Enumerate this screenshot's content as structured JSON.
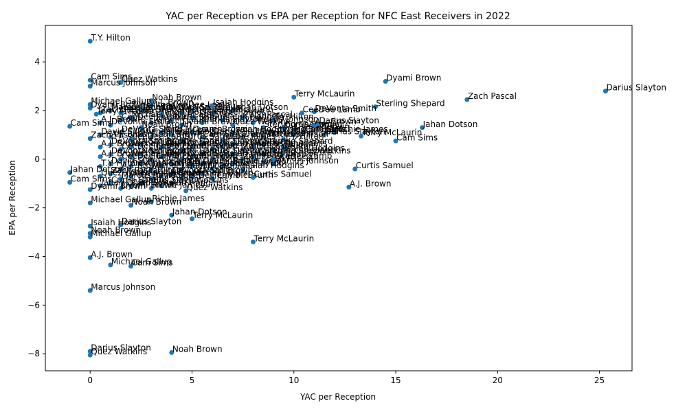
{
  "chart_data": {
    "type": "scatter",
    "title": "YAC per Reception vs EPA per Reception for NFC East Receivers in 2022",
    "xlabel": "YAC per Reception",
    "ylabel": "EPA per Reception",
    "xlim": [
      -2.2,
      26.6
    ],
    "ylim": [
      -8.7,
      5.5
    ],
    "xticks": [
      0,
      5,
      10,
      15,
      20,
      25
    ],
    "yticks": [
      -8,
      -6,
      -4,
      -2,
      0,
      2,
      4
    ],
    "grid": false,
    "marker_color": "#1f77b4",
    "labeled_points": [
      {
        "name": "T.Y. Hilton",
        "x": 0.0,
        "y": 4.85
      },
      {
        "name": "Cam Sims",
        "x": 0.0,
        "y": 3.25
      },
      {
        "name": "Marcus Johnson",
        "x": 0.0,
        "y": 3.0
      },
      {
        "name": "Quez Watkins",
        "x": 1.5,
        "y": 3.15
      },
      {
        "name": "Dyami Brown",
        "x": 14.5,
        "y": 3.2
      },
      {
        "name": "Darius Slayton",
        "x": 25.3,
        "y": 2.8
      },
      {
        "name": "Zach Pascal",
        "x": 18.5,
        "y": 2.45
      },
      {
        "name": "Terry McLaurin",
        "x": 10.0,
        "y": 2.55
      },
      {
        "name": "Noah Brown",
        "x": 3.0,
        "y": 2.4
      },
      {
        "name": "Isaiah Hodgins",
        "x": 6.0,
        "y": 2.2
      },
      {
        "name": "Sterling Shepard",
        "x": 14.0,
        "y": 2.15
      },
      {
        "name": "CeeDee Lamb",
        "x": 10.4,
        "y": 1.9
      },
      {
        "name": "DeVonta Smith",
        "x": 11.0,
        "y": 1.95
      },
      {
        "name": "Jahan Dotson",
        "x": 16.3,
        "y": 1.3
      },
      {
        "name": "Cam Sims",
        "x": 15.0,
        "y": 0.75
      },
      {
        "name": "Terry McLaurin",
        "x": 13.3,
        "y": 0.95
      },
      {
        "name": "A.J. Brown",
        "x": 11.0,
        "y": 1.4
      },
      {
        "name": "Darius Slayton",
        "x": 11.2,
        "y": 1.45
      },
      {
        "name": "Dyami Brown",
        "x": 0.0,
        "y": 2.1
      },
      {
        "name": "Michael Gallup",
        "x": 0.0,
        "y": 2.25
      },
      {
        "name": "Terry McLaurin",
        "x": 0.3,
        "y": 1.85
      },
      {
        "name": "Cam Sims",
        "x": -1.0,
        "y": 1.35
      },
      {
        "name": "Curtis Samuel",
        "x": 13.0,
        "y": -0.4
      },
      {
        "name": "A.J. Brown",
        "x": 12.7,
        "y": -1.15
      },
      {
        "name": "Curtis Samuel",
        "x": 8.0,
        "y": -0.75
      },
      {
        "name": "CeeDee Lamb",
        "x": 9.0,
        "y": 0.0
      },
      {
        "name": "Quez Watkins",
        "x": 4.7,
        "y": -1.3
      },
      {
        "name": "Richie James",
        "x": 3.0,
        "y": -1.75
      },
      {
        "name": "Noah Brown",
        "x": 2.0,
        "y": -1.9
      },
      {
        "name": "Jahan Dotson",
        "x": 4.0,
        "y": -2.3
      },
      {
        "name": "Terry McLaurin",
        "x": 5.0,
        "y": -2.45
      },
      {
        "name": "Darius Slayton",
        "x": 1.5,
        "y": -2.7
      },
      {
        "name": "Isaiah Hodgins",
        "x": 0.0,
        "y": -2.75
      },
      {
        "name": "Noah Brown",
        "x": 0.0,
        "y": -3.05
      },
      {
        "name": "Michael Gallup",
        "x": 0.0,
        "y": -3.2
      },
      {
        "name": "Terry McLaurin",
        "x": 8.0,
        "y": -3.4
      },
      {
        "name": "A.J. Brown",
        "x": 0.0,
        "y": -4.05
      },
      {
        "name": "Michael Gallup",
        "x": 1.0,
        "y": -4.35
      },
      {
        "name": "Cam Sims",
        "x": 2.0,
        "y": -4.4
      },
      {
        "name": "Marcus Johnson",
        "x": 0.0,
        "y": -5.4
      },
      {
        "name": "Darius Slayton",
        "x": 0.0,
        "y": -7.9
      },
      {
        "name": "Quez Watkins",
        "x": 0.0,
        "y": -8.05
      },
      {
        "name": "Noah Brown",
        "x": 4.0,
        "y": -7.95
      },
      {
        "name": "Michael Gallup",
        "x": 0.0,
        "y": -1.8
      },
      {
        "name": "Jahan Dotson",
        "x": -1.0,
        "y": -0.55
      },
      {
        "name": "Cam Sims",
        "x": -1.0,
        "y": -0.95
      },
      {
        "name": "Zach Pascal",
        "x": 0.0,
        "y": 0.85
      },
      {
        "name": "Dyami Brown",
        "x": 0.0,
        "y": -1.25
      }
    ],
    "cluster_names": [
      "A.J. Brown",
      "DeVonta Smith",
      "CeeDee Lamb",
      "Michael Gallup",
      "Noah Brown",
      "Terry McLaurin",
      "Jahan Dotson",
      "Curtis Samuel",
      "Dyami Brown",
      "Cam Sims",
      "Darius Slayton",
      "Richie James",
      "Isaiah Hodgins",
      "Quez Watkins",
      "Zach Pascal",
      "Marcus Johnson",
      "Sterling Shepard",
      "T.Y. Hilton",
      "David Sills"
    ],
    "cluster_points": [
      [
        0.5,
        1.5
      ],
      [
        1.0,
        1.4
      ],
      [
        1.5,
        1.6
      ],
      [
        2.0,
        1.7
      ],
      [
        2.5,
        1.3
      ],
      [
        3.0,
        1.5
      ],
      [
        3.5,
        1.8
      ],
      [
        4.0,
        1.6
      ],
      [
        4.5,
        1.4
      ],
      [
        5.0,
        1.7
      ],
      [
        5.5,
        1.5
      ],
      [
        6.0,
        1.8
      ],
      [
        6.5,
        1.6
      ],
      [
        7.0,
        1.4
      ],
      [
        7.5,
        1.7
      ],
      [
        8.0,
        1.5
      ],
      [
        8.5,
        1.3
      ],
      [
        9.0,
        1.6
      ],
      [
        0.5,
        1.0
      ],
      [
        1.0,
        0.9
      ],
      [
        1.5,
        1.1
      ],
      [
        2.0,
        0.8
      ],
      [
        2.5,
        1.0
      ],
      [
        3.0,
        0.9
      ],
      [
        3.5,
        1.1
      ],
      [
        4.0,
        1.0
      ],
      [
        4.5,
        0.8
      ],
      [
        5.0,
        1.1
      ],
      [
        5.5,
        0.9
      ],
      [
        6.0,
        1.0
      ],
      [
        6.5,
        0.8
      ],
      [
        7.0,
        1.1
      ],
      [
        7.5,
        0.9
      ],
      [
        8.0,
        1.0
      ],
      [
        8.5,
        0.9
      ],
      [
        9.0,
        1.1
      ],
      [
        9.5,
        0.8
      ],
      [
        10.0,
        1.0
      ],
      [
        0.5,
        0.5
      ],
      [
        1.0,
        0.6
      ],
      [
        1.5,
        0.4
      ],
      [
        2.0,
        0.5
      ],
      [
        2.5,
        0.6
      ],
      [
        3.0,
        0.4
      ],
      [
        3.5,
        0.5
      ],
      [
        4.0,
        0.6
      ],
      [
        4.5,
        0.4
      ],
      [
        5.0,
        0.5
      ],
      [
        5.5,
        0.6
      ],
      [
        6.0,
        0.4
      ],
      [
        6.5,
        0.5
      ],
      [
        7.0,
        0.6
      ],
      [
        7.5,
        0.4
      ],
      [
        8.0,
        0.5
      ],
      [
        8.5,
        0.6
      ],
      [
        9.0,
        0.4
      ],
      [
        9.5,
        0.5
      ],
      [
        0.5,
        0.1
      ],
      [
        1.0,
        0.2
      ],
      [
        1.5,
        0.0
      ],
      [
        2.0,
        0.1
      ],
      [
        2.5,
        0.2
      ],
      [
        3.0,
        0.0
      ],
      [
        3.5,
        0.1
      ],
      [
        4.0,
        0.2
      ],
      [
        4.5,
        0.0
      ],
      [
        5.0,
        0.1
      ],
      [
        5.5,
        0.2
      ],
      [
        6.0,
        0.0
      ],
      [
        6.5,
        0.1
      ],
      [
        7.0,
        0.2
      ],
      [
        7.5,
        0.0
      ],
      [
        8.0,
        0.1
      ],
      [
        8.5,
        0.2
      ],
      [
        0.5,
        -0.3
      ],
      [
        1.0,
        -0.2
      ],
      [
        1.5,
        -0.4
      ],
      [
        2.0,
        -0.3
      ],
      [
        2.5,
        -0.2
      ],
      [
        3.0,
        -0.4
      ],
      [
        3.5,
        -0.3
      ],
      [
        4.0,
        -0.2
      ],
      [
        4.5,
        -0.4
      ],
      [
        5.0,
        -0.3
      ],
      [
        5.5,
        -0.2
      ],
      [
        6.0,
        -0.4
      ],
      [
        6.5,
        -0.3
      ],
      [
        7.0,
        -0.2
      ],
      [
        7.5,
        -0.4
      ],
      [
        0.5,
        -0.7
      ],
      [
        1.0,
        -0.6
      ],
      [
        1.5,
        -0.8
      ],
      [
        2.0,
        -0.7
      ],
      [
        2.5,
        -0.6
      ],
      [
        3.0,
        -0.8
      ],
      [
        3.5,
        -0.7
      ],
      [
        4.0,
        -0.6
      ],
      [
        4.5,
        -0.8
      ],
      [
        5.0,
        -0.7
      ],
      [
        5.5,
        -0.6
      ],
      [
        6.0,
        -0.8
      ],
      [
        0.5,
        -1.1
      ],
      [
        1.0,
        -1.0
      ],
      [
        1.5,
        -1.2
      ],
      [
        2.0,
        -1.1
      ],
      [
        2.5,
        -1.0
      ],
      [
        3.0,
        -1.2
      ],
      [
        3.5,
        -1.1
      ],
      [
        4.0,
        -1.0
      ],
      [
        0.5,
        1.9
      ],
      [
        1.0,
        2.0
      ],
      [
        1.5,
        1.9
      ],
      [
        2.0,
        2.1
      ],
      [
        2.5,
        2.0
      ],
      [
        3.0,
        2.2
      ],
      [
        3.5,
        2.0
      ],
      [
        4.0,
        2.1
      ],
      [
        4.5,
        1.9
      ],
      [
        5.0,
        2.0
      ],
      [
        6.0,
        1.9
      ],
      [
        7.0,
        2.0
      ],
      [
        9.5,
        1.3
      ],
      [
        10.0,
        1.2
      ],
      [
        10.5,
        1.1
      ],
      [
        11.5,
        1.0
      ],
      [
        12.0,
        1.1
      ],
      [
        9.5,
        0.3
      ],
      [
        10.0,
        0.2
      ],
      [
        8.5,
        -0.1
      ],
      [
        9.0,
        -0.2
      ]
    ]
  }
}
